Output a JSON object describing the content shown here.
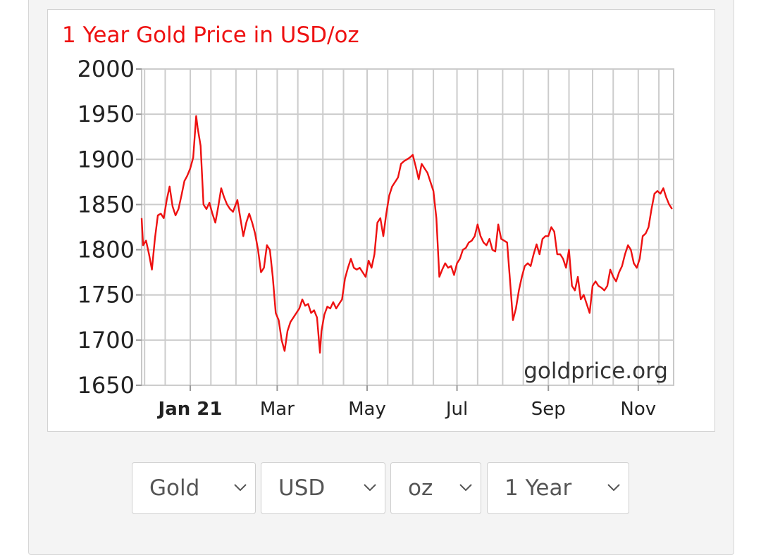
{
  "chart_data": {
    "type": "line",
    "title": "1 Year Gold Price in USD/oz",
    "watermark": "goldprice.org",
    "ylim": [
      1650,
      2000
    ],
    "yticks": [
      1650,
      1700,
      1750,
      1800,
      1850,
      1900,
      1950,
      2000
    ],
    "x_tick_labels": [
      {
        "date": "2021-01-01",
        "label": "Jan 21",
        "bold": true
      },
      {
        "date": "2021-03-01",
        "label": "Mar",
        "bold": false
      },
      {
        "date": "2021-05-01",
        "label": "May",
        "bold": false
      },
      {
        "date": "2021-07-01",
        "label": "Jul",
        "bold": false
      },
      {
        "date": "2021-09-01",
        "label": "Sep",
        "bold": false
      },
      {
        "date": "2021-11-01",
        "label": "Nov",
        "bold": false
      }
    ],
    "x_gridlines": [
      "2020-12-01",
      "2020-12-15",
      "2021-01-01",
      "2021-01-15",
      "2021-02-01",
      "2021-02-15",
      "2021-03-01",
      "2021-03-15",
      "2021-04-01",
      "2021-04-15",
      "2021-05-01",
      "2021-05-15",
      "2021-06-01",
      "2021-06-15",
      "2021-07-01",
      "2021-07-15",
      "2021-08-01",
      "2021-08-15",
      "2021-09-01",
      "2021-09-15",
      "2021-10-01",
      "2021-10-15",
      "2021-11-01",
      "2021-11-15"
    ],
    "xlim": [
      "2020-11-29",
      "2021-11-25"
    ],
    "grid": true,
    "line_color": "#ee1111",
    "series": [
      {
        "values": [
          [
            "2020-11-29",
            1835
          ],
          [
            "2020-11-30",
            1805
          ],
          [
            "2020-12-02",
            1810
          ],
          [
            "2020-12-04",
            1795
          ],
          [
            "2020-12-06",
            1778
          ],
          [
            "2020-12-08",
            1812
          ],
          [
            "2020-12-10",
            1838
          ],
          [
            "2020-12-12",
            1840
          ],
          [
            "2020-12-14",
            1835
          ],
          [
            "2020-12-16",
            1855
          ],
          [
            "2020-12-18",
            1870
          ],
          [
            "2020-12-20",
            1848
          ],
          [
            "2020-12-22",
            1838
          ],
          [
            "2020-12-24",
            1845
          ],
          [
            "2020-12-26",
            1860
          ],
          [
            "2020-12-28",
            1876
          ],
          [
            "2020-12-30",
            1882
          ],
          [
            "2021-01-01",
            1890
          ],
          [
            "2021-01-03",
            1902
          ],
          [
            "2021-01-05",
            1948
          ],
          [
            "2021-01-06",
            1935
          ],
          [
            "2021-01-08",
            1915
          ],
          [
            "2021-01-10",
            1850
          ],
          [
            "2021-01-12",
            1845
          ],
          [
            "2021-01-14",
            1852
          ],
          [
            "2021-01-16",
            1840
          ],
          [
            "2021-01-18",
            1830
          ],
          [
            "2021-01-20",
            1848
          ],
          [
            "2021-01-22",
            1868
          ],
          [
            "2021-01-24",
            1858
          ],
          [
            "2021-01-26",
            1850
          ],
          [
            "2021-01-28",
            1845
          ],
          [
            "2021-01-30",
            1842
          ],
          [
            "2021-02-02",
            1855
          ],
          [
            "2021-02-04",
            1835
          ],
          [
            "2021-02-06",
            1815
          ],
          [
            "2021-02-08",
            1830
          ],
          [
            "2021-02-10",
            1840
          ],
          [
            "2021-02-12",
            1830
          ],
          [
            "2021-02-14",
            1818
          ],
          [
            "2021-02-16",
            1800
          ],
          [
            "2021-02-18",
            1775
          ],
          [
            "2021-02-20",
            1780
          ],
          [
            "2021-02-22",
            1805
          ],
          [
            "2021-02-24",
            1800
          ],
          [
            "2021-02-26",
            1770
          ],
          [
            "2021-02-28",
            1730
          ],
          [
            "2021-03-02",
            1722
          ],
          [
            "2021-03-04",
            1700
          ],
          [
            "2021-03-06",
            1688
          ],
          [
            "2021-03-08",
            1710
          ],
          [
            "2021-03-10",
            1720
          ],
          [
            "2021-03-12",
            1725
          ],
          [
            "2021-03-14",
            1730
          ],
          [
            "2021-03-16",
            1735
          ],
          [
            "2021-03-18",
            1745
          ],
          [
            "2021-03-20",
            1738
          ],
          [
            "2021-03-22",
            1740
          ],
          [
            "2021-03-24",
            1730
          ],
          [
            "2021-03-26",
            1733
          ],
          [
            "2021-03-28",
            1725
          ],
          [
            "2021-03-30",
            1686
          ],
          [
            "2021-03-31",
            1710
          ],
          [
            "2021-04-02",
            1728
          ],
          [
            "2021-04-04",
            1737
          ],
          [
            "2021-04-06",
            1735
          ],
          [
            "2021-04-08",
            1742
          ],
          [
            "2021-04-10",
            1735
          ],
          [
            "2021-04-12",
            1740
          ],
          [
            "2021-04-14",
            1745
          ],
          [
            "2021-04-16",
            1768
          ],
          [
            "2021-04-18",
            1780
          ],
          [
            "2021-04-20",
            1790
          ],
          [
            "2021-04-22",
            1780
          ],
          [
            "2021-04-24",
            1778
          ],
          [
            "2021-04-26",
            1780
          ],
          [
            "2021-04-28",
            1775
          ],
          [
            "2021-04-30",
            1770
          ],
          [
            "2021-05-02",
            1788
          ],
          [
            "2021-05-04",
            1780
          ],
          [
            "2021-05-06",
            1795
          ],
          [
            "2021-05-08",
            1830
          ],
          [
            "2021-05-10",
            1835
          ],
          [
            "2021-05-12",
            1815
          ],
          [
            "2021-05-14",
            1840
          ],
          [
            "2021-05-16",
            1860
          ],
          [
            "2021-05-18",
            1870
          ],
          [
            "2021-05-20",
            1875
          ],
          [
            "2021-05-22",
            1880
          ],
          [
            "2021-05-24",
            1895
          ],
          [
            "2021-05-26",
            1898
          ],
          [
            "2021-05-28",
            1900
          ],
          [
            "2021-05-30",
            1902
          ],
          [
            "2021-06-01",
            1905
          ],
          [
            "2021-06-03",
            1892
          ],
          [
            "2021-06-05",
            1878
          ],
          [
            "2021-06-07",
            1895
          ],
          [
            "2021-06-09",
            1890
          ],
          [
            "2021-06-11",
            1885
          ],
          [
            "2021-06-13",
            1875
          ],
          [
            "2021-06-15",
            1865
          ],
          [
            "2021-06-17",
            1835
          ],
          [
            "2021-06-19",
            1770
          ],
          [
            "2021-06-21",
            1778
          ],
          [
            "2021-06-23",
            1785
          ],
          [
            "2021-06-25",
            1780
          ],
          [
            "2021-06-27",
            1782
          ],
          [
            "2021-06-29",
            1772
          ],
          [
            "2021-07-01",
            1785
          ],
          [
            "2021-07-03",
            1790
          ],
          [
            "2021-07-05",
            1800
          ],
          [
            "2021-07-07",
            1802
          ],
          [
            "2021-07-09",
            1808
          ],
          [
            "2021-07-11",
            1810
          ],
          [
            "2021-07-13",
            1815
          ],
          [
            "2021-07-15",
            1828
          ],
          [
            "2021-07-17",
            1815
          ],
          [
            "2021-07-19",
            1808
          ],
          [
            "2021-07-21",
            1805
          ],
          [
            "2021-07-23",
            1812
          ],
          [
            "2021-07-25",
            1800
          ],
          [
            "2021-07-27",
            1798
          ],
          [
            "2021-07-29",
            1828
          ],
          [
            "2021-07-31",
            1812
          ],
          [
            "2021-08-02",
            1810
          ],
          [
            "2021-08-04",
            1808
          ],
          [
            "2021-08-06",
            1765
          ],
          [
            "2021-08-08",
            1722
          ],
          [
            "2021-08-10",
            1735
          ],
          [
            "2021-08-12",
            1755
          ],
          [
            "2021-08-14",
            1770
          ],
          [
            "2021-08-16",
            1782
          ],
          [
            "2021-08-18",
            1785
          ],
          [
            "2021-08-20",
            1782
          ],
          [
            "2021-08-22",
            1795
          ],
          [
            "2021-08-24",
            1806
          ],
          [
            "2021-08-26",
            1795
          ],
          [
            "2021-08-28",
            1812
          ],
          [
            "2021-08-30",
            1815
          ],
          [
            "2021-09-01",
            1815
          ],
          [
            "2021-09-03",
            1825
          ],
          [
            "2021-09-05",
            1820
          ],
          [
            "2021-09-07",
            1795
          ],
          [
            "2021-09-09",
            1795
          ],
          [
            "2021-09-11",
            1790
          ],
          [
            "2021-09-13",
            1780
          ],
          [
            "2021-09-15",
            1800
          ],
          [
            "2021-09-17",
            1760
          ],
          [
            "2021-09-19",
            1755
          ],
          [
            "2021-09-21",
            1770
          ],
          [
            "2021-09-23",
            1745
          ],
          [
            "2021-09-25",
            1750
          ],
          [
            "2021-09-27",
            1740
          ],
          [
            "2021-09-29",
            1730
          ],
          [
            "2021-10-01",
            1760
          ],
          [
            "2021-10-03",
            1765
          ],
          [
            "2021-10-05",
            1760
          ],
          [
            "2021-10-07",
            1758
          ],
          [
            "2021-10-09",
            1755
          ],
          [
            "2021-10-11",
            1760
          ],
          [
            "2021-10-13",
            1778
          ],
          [
            "2021-10-15",
            1770
          ],
          [
            "2021-10-17",
            1765
          ],
          [
            "2021-10-19",
            1775
          ],
          [
            "2021-10-21",
            1782
          ],
          [
            "2021-10-23",
            1795
          ],
          [
            "2021-10-25",
            1805
          ],
          [
            "2021-10-27",
            1800
          ],
          [
            "2021-10-29",
            1785
          ],
          [
            "2021-10-31",
            1780
          ],
          [
            "2021-11-02",
            1790
          ],
          [
            "2021-11-04",
            1815
          ],
          [
            "2021-11-06",
            1818
          ],
          [
            "2021-11-08",
            1825
          ],
          [
            "2021-11-10",
            1845
          ],
          [
            "2021-11-12",
            1862
          ],
          [
            "2021-11-14",
            1865
          ],
          [
            "2021-11-16",
            1862
          ],
          [
            "2021-11-18",
            1868
          ],
          [
            "2021-11-20",
            1858
          ],
          [
            "2021-11-22",
            1850
          ],
          [
            "2021-11-24",
            1845
          ]
        ]
      }
    ]
  },
  "selectors": [
    {
      "label": "Gold"
    },
    {
      "label": "USD"
    },
    {
      "label": "oz"
    },
    {
      "label": "1 Year"
    }
  ]
}
